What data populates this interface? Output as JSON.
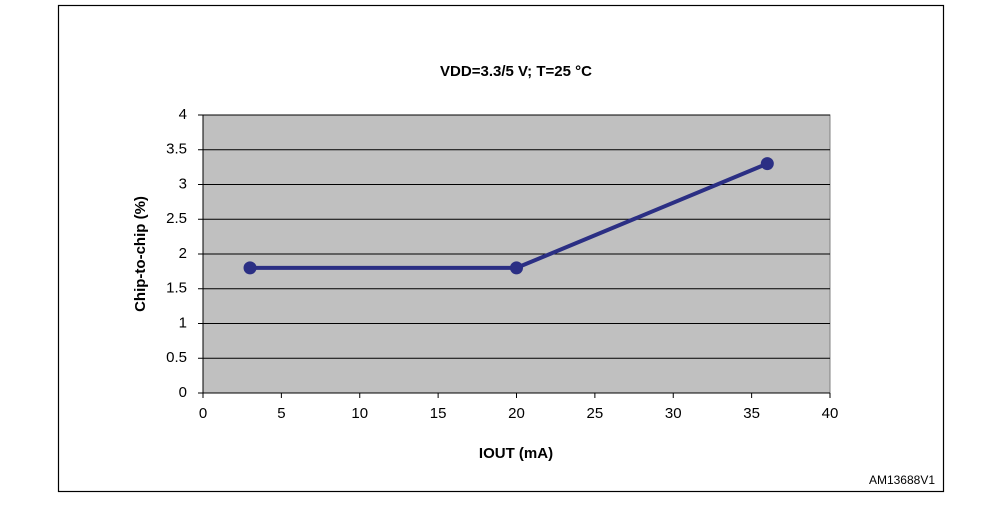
{
  "chart_data": {
    "type": "line",
    "title": "VDD=3.3/5 V; T=25 °C",
    "x_label": "IOUT (mA)",
    "y_label": "Chip-to-chip (%)",
    "x": [
      3,
      20,
      36
    ],
    "series": [
      {
        "name": "Chip-to-chip",
        "color": "#2b2f84",
        "values": [
          1.8,
          1.8,
          3.3
        ]
      }
    ],
    "xlim": [
      0,
      40
    ],
    "xticks": [
      0,
      5,
      10,
      15,
      20,
      25,
      30,
      35,
      40
    ],
    "ylim": [
      0,
      4
    ],
    "yticks": [
      0,
      0.5,
      1,
      1.5,
      2,
      2.5,
      3,
      3.5,
      4
    ],
    "grid": true,
    "plot_background": "#c0c0c0"
  },
  "figure_code": "AM13688V1"
}
